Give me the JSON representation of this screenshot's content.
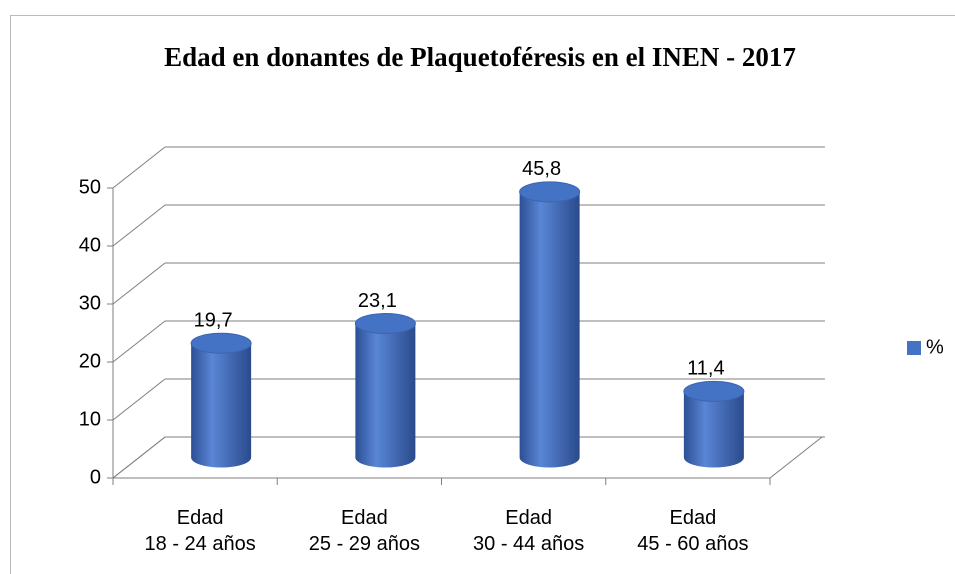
{
  "chart_data": {
    "type": "bar3d",
    "title": "Edad en donantes de Plaquetoféresis en el INEN - 2017",
    "categories": [
      "Edad\n18 - 24 años",
      "Edad\n25 - 29 años",
      "Edad\n30 - 44 años",
      "Edad\n45 - 60 años"
    ],
    "series": [
      {
        "name": "%",
        "color": "#4472c4",
        "values": [
          19.7,
          23.1,
          45.8,
          11.4
        ],
        "value_labels": [
          "19,7",
          "23,1",
          "45,8",
          "11,4"
        ]
      }
    ],
    "ylim": [
      0,
      50
    ],
    "yticks": [
      0,
      10,
      20,
      30,
      40,
      50
    ],
    "grid": true,
    "legend": "right"
  }
}
